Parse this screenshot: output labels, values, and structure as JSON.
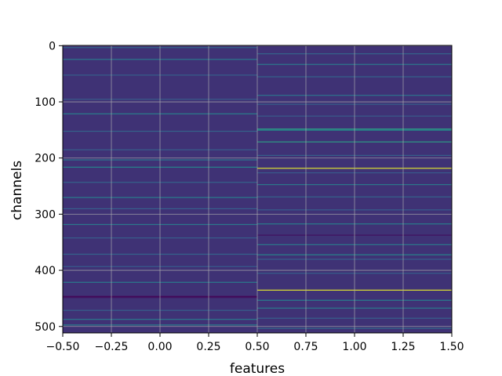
{
  "chart_data": {
    "type": "heatmap",
    "title": "",
    "xlabel": "features",
    "ylabel": "channels",
    "xlim": [
      -0.5,
      1.5
    ],
    "ylim": [
      511.5,
      -0.5
    ],
    "x_ticks": [
      -0.5,
      -0.25,
      0.0,
      0.25,
      0.5,
      0.75,
      1.0,
      1.25,
      1.5
    ],
    "x_tick_labels": [
      "−0.50",
      "−0.25",
      "0.00",
      "0.25",
      "0.50",
      "0.75",
      "1.00",
      "1.25",
      "1.50"
    ],
    "y_ticks": [
      0,
      100,
      200,
      300,
      400,
      500
    ],
    "y_tick_labels": [
      "0",
      "100",
      "200",
      "300",
      "400",
      "500"
    ],
    "grid": true,
    "colormap": "viridis",
    "n_rows": 512,
    "n_cols": 2,
    "columns": [
      {
        "feature": 0,
        "base_value": 0.15,
        "highlights": [
          {
            "row": 3,
            "value": 0.32
          },
          {
            "row": 24,
            "value": 0.4
          },
          {
            "row": 52,
            "value": 0.3
          },
          {
            "row": 95,
            "value": 0.28
          },
          {
            "row": 121,
            "value": 0.42
          },
          {
            "row": 152,
            "value": 0.32
          },
          {
            "row": 185,
            "value": 0.3
          },
          {
            "row": 203,
            "value": 0.4
          },
          {
            "row": 216,
            "value": 0.45
          },
          {
            "row": 243,
            "value": 0.32
          },
          {
            "row": 270,
            "value": 0.42
          },
          {
            "row": 290,
            "value": 0.3
          },
          {
            "row": 318,
            "value": 0.4
          },
          {
            "row": 342,
            "value": 0.3
          },
          {
            "row": 371,
            "value": 0.32
          },
          {
            "row": 393,
            "value": 0.28
          },
          {
            "row": 421,
            "value": 0.4
          },
          {
            "row": 446,
            "value": 0.02
          },
          {
            "row": 448,
            "value": 0.03
          },
          {
            "row": 471,
            "value": 0.3
          },
          {
            "row": 487,
            "value": 0.4
          },
          {
            "row": 497,
            "value": 0.42
          }
        ]
      },
      {
        "feature": 1,
        "base_value": 0.15,
        "highlights": [
          {
            "row": 14,
            "value": 0.32
          },
          {
            "row": 33,
            "value": 0.4
          },
          {
            "row": 55,
            "value": 0.32
          },
          {
            "row": 88,
            "value": 0.38
          },
          {
            "row": 104,
            "value": 0.3
          },
          {
            "row": 125,
            "value": 0.28
          },
          {
            "row": 148,
            "value": 0.55
          },
          {
            "row": 150,
            "value": 0.5
          },
          {
            "row": 171,
            "value": 0.55
          },
          {
            "row": 195,
            "value": 0.3
          },
          {
            "row": 218,
            "value": 0.95
          },
          {
            "row": 226,
            "value": 0.28
          },
          {
            "row": 247,
            "value": 0.4
          },
          {
            "row": 269,
            "value": 0.32
          },
          {
            "row": 292,
            "value": 0.3
          },
          {
            "row": 317,
            "value": 0.42
          },
          {
            "row": 337,
            "value": 0.05
          },
          {
            "row": 354,
            "value": 0.4
          },
          {
            "row": 372,
            "value": 0.45
          },
          {
            "row": 380,
            "value": 0.3
          },
          {
            "row": 405,
            "value": 0.3
          },
          {
            "row": 435,
            "value": 0.95
          },
          {
            "row": 453,
            "value": 0.42
          },
          {
            "row": 467,
            "value": 0.4
          },
          {
            "row": 485,
            "value": 0.3
          },
          {
            "row": 503,
            "value": 0.35
          }
        ]
      }
    ]
  }
}
